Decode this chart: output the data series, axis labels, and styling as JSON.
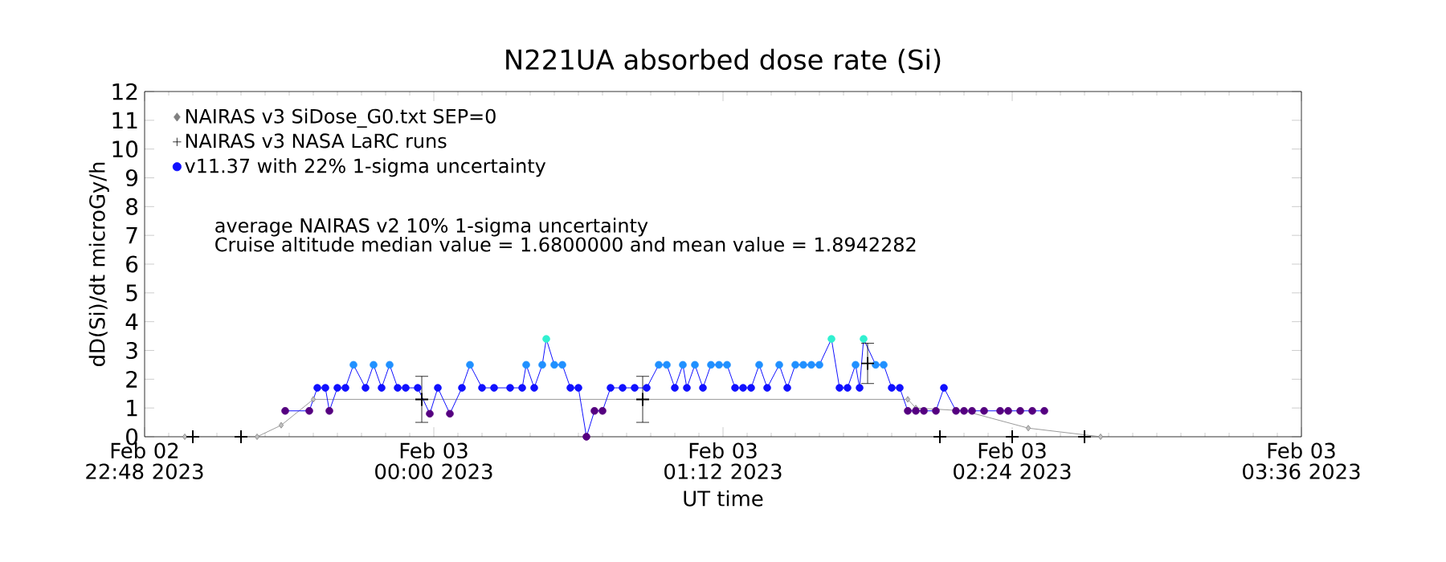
{
  "chart_data": {
    "type": "line",
    "title": "N221UA absorbed dose rate (Si)",
    "xlabel": "UT time",
    "ylabel": "dD(Si)/dt microGy/h",
    "xlim": [
      "2023-02-02T22:48",
      "2023-02-03T03:36"
    ],
    "ylim": [
      0,
      12
    ],
    "yticks": [
      0,
      1,
      2,
      3,
      4,
      5,
      6,
      7,
      8,
      9,
      10,
      11,
      12
    ],
    "xticks": [
      {
        "value": "2023-02-02T22:48",
        "label": "Feb 02 22:48 2023"
      },
      {
        "value": "2023-02-03T00:00",
        "label": "Feb 03 00:00 2023"
      },
      {
        "value": "2023-02-03T01:12",
        "label": "Feb 03 01:12 2023"
      },
      {
        "value": "2023-02-03T02:24",
        "label": "Feb 03 02:24 2023"
      },
      {
        "value": "2023-02-03T03:36",
        "label": "Feb 03 03:36 2023"
      }
    ],
    "legend": "top left",
    "grid": false,
    "annotations": [
      "average NAIRAS v2 10% 1-sigma uncertainty",
      "Cruise altitude median value = 1.6800000 and mean value = 1.8942282"
    ],
    "series": [
      {
        "name": "NAIRAS v3 SiDose_G0.txt SEP=0",
        "type": "line",
        "marker": "diamond",
        "color": "#808080",
        "x": [
          "2023-02-02T22:58",
          "2023-02-02T23:16",
          "2023-02-02T23:22",
          "2023-02-02T23:30",
          "2023-02-03T01:58",
          "2023-02-03T02:00",
          "2023-02-03T02:12",
          "2023-02-03T02:28",
          "2023-02-03T02:46"
        ],
        "values": [
          0,
          0,
          0.4,
          1.3,
          1.3,
          1.0,
          0.9,
          0.3,
          0
        ]
      },
      {
        "name": "NAIRAS v3 NASA LaRC runs",
        "type": "scatter",
        "marker": "cross",
        "color": "#000000",
        "x": [
          "2023-02-02T23:00",
          "2023-02-02T23:12",
          "2023-02-02T23:57",
          "2023-02-03T00:52",
          "2023-02-03T01:48",
          "2023-02-03T02:06",
          "2023-02-03T02:24",
          "2023-02-03T02:42"
        ],
        "values": [
          0,
          0,
          1.3,
          1.3,
          2.55,
          0,
          0,
          0
        ],
        "errors": [
          null,
          null,
          0.8,
          0.8,
          0.7,
          null,
          null,
          null
        ]
      },
      {
        "name": "v11.37 with 22% 1-sigma uncertainty",
        "marker": "circle",
        "color": "#1010ff",
        "x": [
          "2023-02-02T23:23",
          "2023-02-02T23:29",
          "2023-02-02T23:31",
          "2023-02-02T23:33",
          "2023-02-02T23:34",
          "2023-02-02T23:36",
          "2023-02-02T23:38",
          "2023-02-02T23:40",
          "2023-02-02T23:43",
          "2023-02-02T23:45",
          "2023-02-02T23:47",
          "2023-02-02T23:49",
          "2023-02-02T23:51",
          "2023-02-02T23:53",
          "2023-02-02T23:56",
          "2023-02-02T23:59",
          "2023-02-03T00:01",
          "2023-02-03T00:04",
          "2023-02-03T00:07",
          "2023-02-03T00:09",
          "2023-02-03T00:12",
          "2023-02-03T00:15",
          "2023-02-03T00:19",
          "2023-02-03T00:22",
          "2023-02-03T00:23",
          "2023-02-03T00:25",
          "2023-02-03T00:27",
          "2023-02-03T00:28",
          "2023-02-03T00:30",
          "2023-02-03T00:32",
          "2023-02-03T00:34",
          "2023-02-03T00:36",
          "2023-02-03T00:38",
          "2023-02-03T00:40",
          "2023-02-03T00:42",
          "2023-02-03T00:44",
          "2023-02-03T00:47",
          "2023-02-03T00:50",
          "2023-02-03T00:53",
          "2023-02-03T00:56",
          "2023-02-03T00:58",
          "2023-02-03T01:00",
          "2023-02-03T01:02",
          "2023-02-03T01:03",
          "2023-02-03T01:05",
          "2023-02-03T01:07",
          "2023-02-03T01:09",
          "2023-02-03T01:11",
          "2023-02-03T01:13",
          "2023-02-03T01:15",
          "2023-02-03T01:17",
          "2023-02-03T01:19",
          "2023-02-03T01:21",
          "2023-02-03T01:23",
          "2023-02-03T01:26",
          "2023-02-03T01:28",
          "2023-02-03T01:30",
          "2023-02-03T01:32",
          "2023-02-03T01:34",
          "2023-02-03T01:36",
          "2023-02-03T01:39",
          "2023-02-03T01:41",
          "2023-02-03T01:43",
          "2023-02-03T01:45",
          "2023-02-03T01:46",
          "2023-02-03T01:47",
          "2023-02-03T01:50",
          "2023-02-03T01:52",
          "2023-02-03T01:54",
          "2023-02-03T01:56",
          "2023-02-03T01:58",
          "2023-02-03T02:00",
          "2023-02-03T02:02",
          "2023-02-03T02:05",
          "2023-02-03T02:07",
          "2023-02-03T02:10",
          "2023-02-03T02:12",
          "2023-02-03T02:14",
          "2023-02-03T02:17",
          "2023-02-03T02:21",
          "2023-02-03T02:23",
          "2023-02-03T02:26",
          "2023-02-03T02:29",
          "2023-02-03T02:32"
        ],
        "values": [
          0.9,
          0.9,
          1.7,
          1.7,
          0.9,
          1.7,
          1.7,
          2.5,
          1.7,
          2.5,
          1.7,
          2.5,
          1.7,
          1.7,
          1.7,
          0.8,
          1.7,
          0.8,
          1.7,
          2.5,
          1.7,
          1.7,
          1.7,
          1.7,
          2.5,
          1.7,
          2.5,
          3.4,
          2.5,
          2.5,
          1.7,
          1.7,
          0,
          0.9,
          0.9,
          1.7,
          1.7,
          1.7,
          1.7,
          2.5,
          2.5,
          1.7,
          2.5,
          1.7,
          2.5,
          1.7,
          2.5,
          2.5,
          2.5,
          1.7,
          1.7,
          1.7,
          2.5,
          1.7,
          2.5,
          1.7,
          2.5,
          2.5,
          2.5,
          2.5,
          3.4,
          1.7,
          1.7,
          2.5,
          1.7,
          3.4,
          2.5,
          2.5,
          1.7,
          1.7,
          0.9,
          0.9,
          0.9,
          0.9,
          1.7,
          0.9,
          0.9,
          0.9,
          0.9,
          0.9,
          0.9,
          0.9,
          0.9,
          0.9
        ],
        "colors": [
          "#550080",
          "#550080",
          "#1010ff",
          "#1010ff",
          "#550080",
          "#1010ff",
          "#1010ff",
          "#2090ff",
          "#1010ff",
          "#2090ff",
          "#1010ff",
          "#2090ff",
          "#1010ff",
          "#1010ff",
          "#1010ff",
          "#550080",
          "#1010ff",
          "#550080",
          "#1010ff",
          "#2090ff",
          "#1010ff",
          "#1010ff",
          "#1010ff",
          "#1010ff",
          "#2090ff",
          "#1010ff",
          "#2090ff",
          "#30f0d0",
          "#2090ff",
          "#2090ff",
          "#1010ff",
          "#1010ff",
          "#550080",
          "#550080",
          "#550080",
          "#1010ff",
          "#1010ff",
          "#1010ff",
          "#1010ff",
          "#2090ff",
          "#2090ff",
          "#1010ff",
          "#2090ff",
          "#1010ff",
          "#2090ff",
          "#1010ff",
          "#2090ff",
          "#2090ff",
          "#2090ff",
          "#1010ff",
          "#1010ff",
          "#1010ff",
          "#2090ff",
          "#1010ff",
          "#2090ff",
          "#1010ff",
          "#2090ff",
          "#2090ff",
          "#2090ff",
          "#2090ff",
          "#30f0d0",
          "#1010ff",
          "#1010ff",
          "#2090ff",
          "#1010ff",
          "#30f0d0",
          "#2090ff",
          "#2090ff",
          "#1010ff",
          "#1010ff",
          "#550080",
          "#550080",
          "#550080",
          "#550080",
          "#1010ff",
          "#550080",
          "#550080",
          "#550080",
          "#550080",
          "#550080",
          "#550080",
          "#550080",
          "#550080",
          "#550080"
        ]
      }
    ]
  }
}
